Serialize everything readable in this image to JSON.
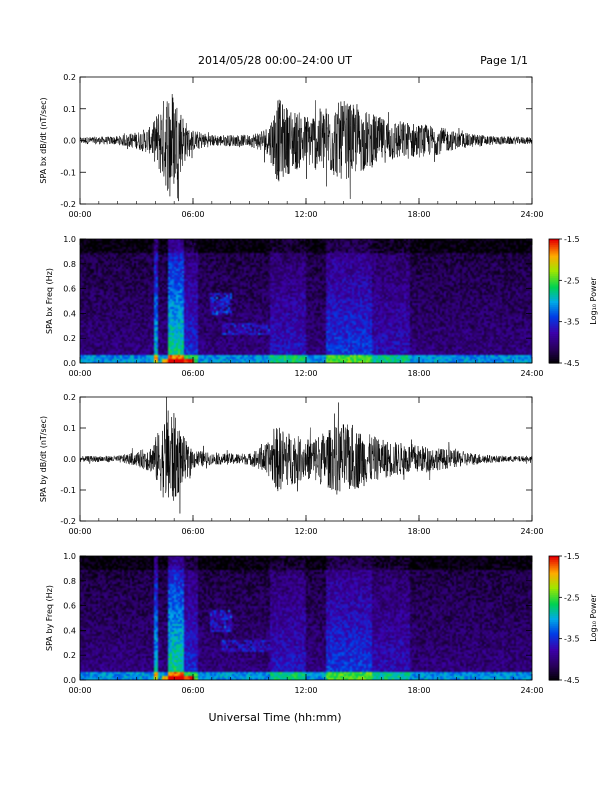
{
  "header": {
    "title": "2014/05/28  00:00–24:00 UT",
    "page": "Page 1/1"
  },
  "xlabel": "Universal Time (hh:mm)",
  "chart_data": [
    {
      "type": "line",
      "ylabel": "SPA bx dB/dt (nT/sec)",
      "xlim": [
        0,
        24
      ],
      "ylim": [
        -0.2,
        0.2
      ],
      "xticks": [
        "00:00",
        "06:00",
        "12:00",
        "18:00",
        "24:00"
      ],
      "yticks": [
        "0.2",
        "0.1",
        "0.0",
        "-0.1",
        "-0.2"
      ],
      "envelope": {
        "hours": [
          0,
          2,
          3,
          3.8,
          4.3,
          4.8,
          5.2,
          5.8,
          7,
          9,
          10,
          10.5,
          11,
          12,
          13,
          14,
          15,
          16,
          17,
          18,
          19,
          20,
          22,
          24
        ],
        "amplitude": [
          0.012,
          0.015,
          0.03,
          0.05,
          0.13,
          0.2,
          0.14,
          0.04,
          0.02,
          0.02,
          0.05,
          0.15,
          0.12,
          0.09,
          0.12,
          0.14,
          0.11,
          0.08,
          0.07,
          0.06,
          0.05,
          0.03,
          0.015,
          0.012
        ]
      }
    },
    {
      "type": "heatmap",
      "ylabel": "SPA bx Freq (Hz)",
      "xlim": [
        0,
        24
      ],
      "ylim": [
        0,
        1
      ],
      "xticks": [
        "00:00",
        "06:00",
        "12:00",
        "18:00",
        "24:00"
      ],
      "yticks": [
        "1.0",
        "0.8",
        "0.6",
        "0.4",
        "0.2",
        "0.0"
      ],
      "colorbar": {
        "label": "Log₁₀ Power",
        "range": [
          -4.5,
          -1.5
        ],
        "ticks": [
          "-1.5",
          "-2.5",
          "-3.5",
          "-4.5"
        ]
      }
    },
    {
      "type": "line",
      "ylabel": "SPA by dB/dt (nT/sec)",
      "xlim": [
        0,
        24
      ],
      "ylim": [
        -0.2,
        0.2
      ],
      "xticks": [
        "00:00",
        "06:00",
        "12:00",
        "18:00",
        "24:00"
      ],
      "yticks": [
        "0.2",
        "0.1",
        "0.0",
        "-0.1",
        "-0.2"
      ],
      "envelope": {
        "hours": [
          0,
          2,
          3,
          3.8,
          4.3,
          4.8,
          5.2,
          5.8,
          7,
          9,
          10,
          10.5,
          11,
          12,
          13,
          14,
          15,
          16,
          17,
          18,
          19,
          20,
          22,
          24
        ],
        "amplitude": [
          0.01,
          0.012,
          0.025,
          0.05,
          0.12,
          0.2,
          0.13,
          0.04,
          0.02,
          0.02,
          0.06,
          0.12,
          0.1,
          0.07,
          0.1,
          0.13,
          0.1,
          0.07,
          0.06,
          0.05,
          0.04,
          0.03,
          0.012,
          0.01
        ]
      }
    },
    {
      "type": "heatmap",
      "ylabel": "SPA by Freq (Hz)",
      "xlim": [
        0,
        24
      ],
      "ylim": [
        0,
        1
      ],
      "xticks": [
        "00:00",
        "06:00",
        "12:00",
        "18:00",
        "24:00"
      ],
      "yticks": [
        "1.0",
        "0.8",
        "0.6",
        "0.4",
        "0.2",
        "0.0"
      ],
      "colorbar": {
        "label": "Log₁₀ Power",
        "range": [
          -4.5,
          -1.5
        ],
        "ticks": [
          "-1.5",
          "-2.5",
          "-3.5",
          "-4.5"
        ]
      }
    }
  ]
}
